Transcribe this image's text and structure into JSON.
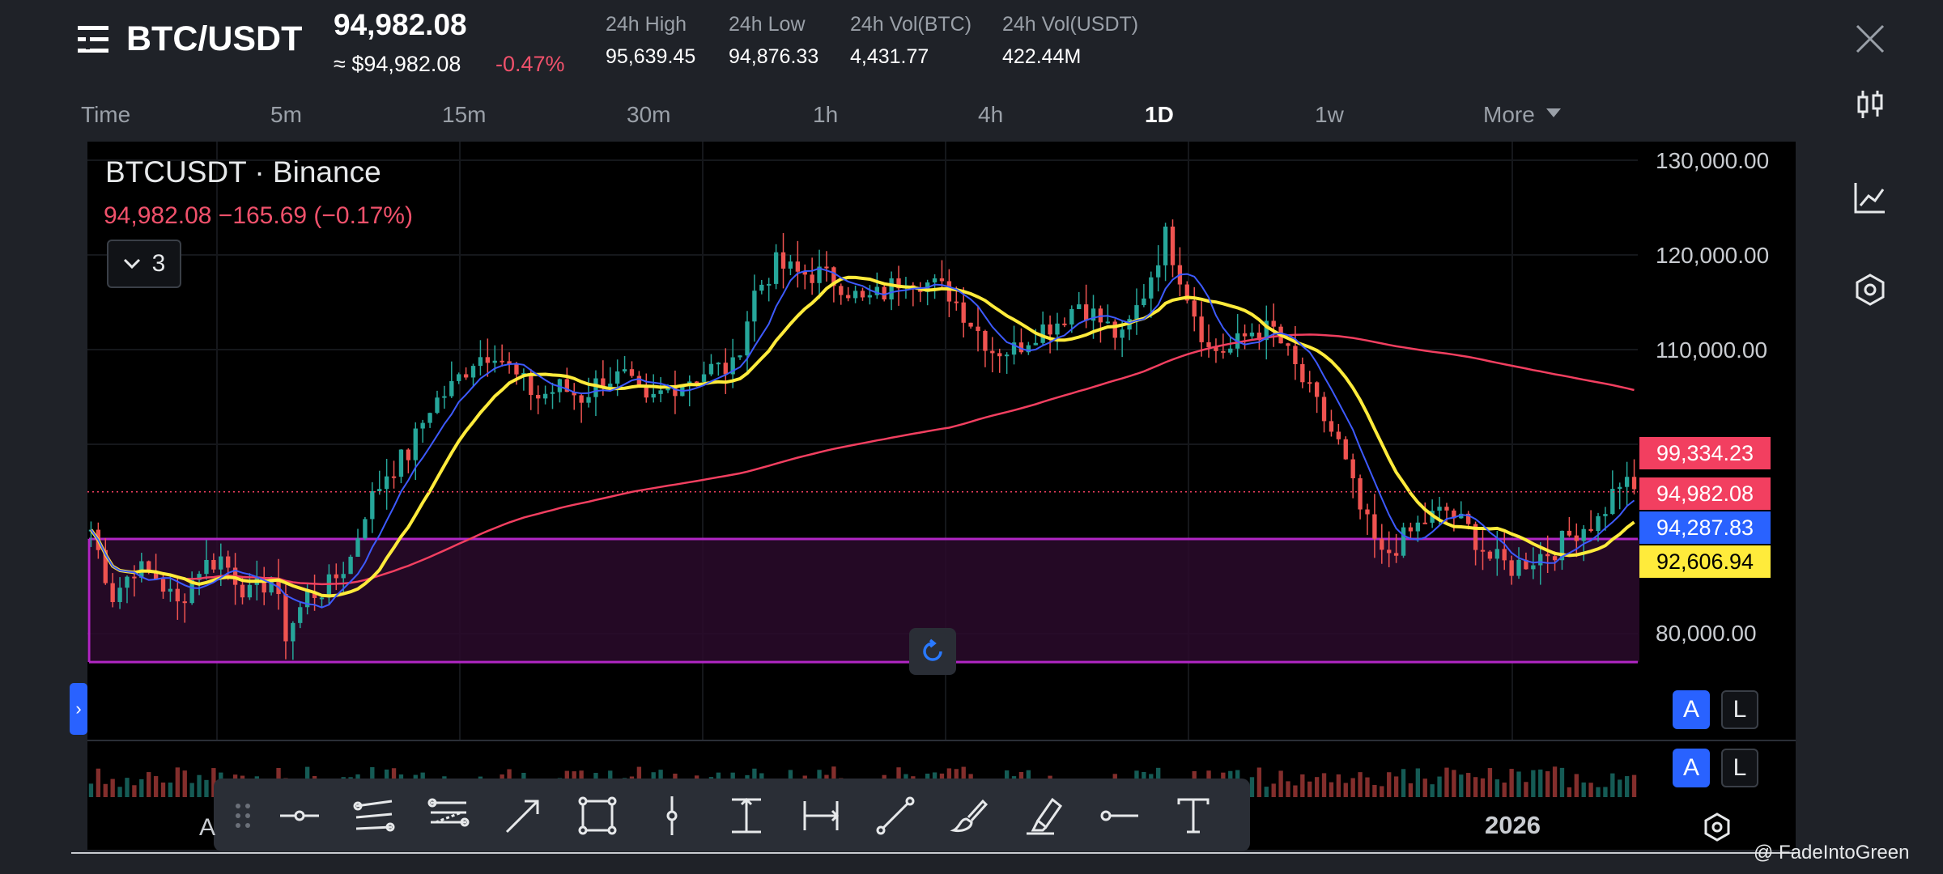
{
  "header": {
    "pair": "BTC/USDT",
    "last_price": "94,982.08",
    "usd_price": "≈ $94,982.08",
    "change_pct": "-0.47%",
    "stats": [
      {
        "label": "24h High",
        "value": "95,639.45"
      },
      {
        "label": "24h Low",
        "value": "94,876.33"
      },
      {
        "label": "24h Vol(BTC)",
        "value": "4,431.77"
      },
      {
        "label": "24h Vol(USDT)",
        "value": "422.44M"
      }
    ],
    "close_icon": "close-icon"
  },
  "timeframes": {
    "items": [
      "Time",
      "5m",
      "15m",
      "30m",
      "1h",
      "4h",
      "1D",
      "1w",
      "More"
    ],
    "active": "1D"
  },
  "right_tools": [
    "candlestick-icon",
    "indicator-chart-icon",
    "settings-hexagon-icon"
  ],
  "chart": {
    "legend_symbol": "BTCUSDT · Binance",
    "legend_quote": "94,982.08  −165.69 (−0.17%)",
    "indicator_count": "3",
    "year_label": "2026",
    "month_label": "A",
    "price_tags": [
      {
        "value": "99,334.23",
        "color": "#f23f60",
        "text_color": "#ffffff"
      },
      {
        "value": "94,982.08",
        "color": "#f23f60",
        "text_color": "#ffffff"
      },
      {
        "value": "94,287.83",
        "color": "#2962ff",
        "text_color": "#ffffff"
      },
      {
        "value": "92,606.94",
        "color": "#ffeb3b",
        "text_color": "#000000"
      }
    ],
    "price_axis": [
      "130,000.00",
      "120,000.00",
      "110,000.00",
      "80,000.00"
    ],
    "scale_buttons": {
      "auto": "A",
      "log": "L"
    }
  },
  "chart_data": {
    "type": "candlestick",
    "title": "BTCUSDT · Binance",
    "timeframe": "1D",
    "ylim": [
      72000,
      132000
    ],
    "y_ticks": [
      130000,
      120000,
      110000,
      80000
    ],
    "grid": true,
    "price_path": [
      [
        0,
        91000
      ],
      [
        3,
        84000
      ],
      [
        6,
        87000
      ],
      [
        9,
        86000
      ],
      [
        12,
        83000
      ],
      [
        15,
        87000
      ],
      [
        18,
        88000
      ],
      [
        22,
        84000
      ],
      [
        25,
        86000
      ],
      [
        27,
        80000
      ],
      [
        30,
        84000
      ],
      [
        33,
        85000
      ],
      [
        36,
        88000
      ],
      [
        38,
        93000
      ],
      [
        41,
        97000
      ],
      [
        44,
        99000
      ],
      [
        47,
        104000
      ],
      [
        50,
        106000
      ],
      [
        53,
        109000
      ],
      [
        56,
        110000
      ],
      [
        59,
        107000
      ],
      [
        62,
        105000
      ],
      [
        65,
        106000
      ],
      [
        68,
        105000
      ],
      [
        71,
        107000
      ],
      [
        74,
        107000
      ],
      [
        77,
        104000
      ],
      [
        80,
        106000
      ],
      [
        83,
        107000
      ],
      [
        86,
        108000
      ],
      [
        89,
        108000
      ],
      [
        92,
        116000
      ],
      [
        95,
        119000
      ],
      [
        98,
        118000
      ],
      [
        101,
        118000
      ],
      [
        104,
        117000
      ],
      [
        107,
        115000
      ],
      [
        110,
        116000
      ],
      [
        113,
        118000
      ],
      [
        116,
        117000
      ],
      [
        119,
        116000
      ],
      [
        122,
        113000
      ],
      [
        125,
        110000
      ],
      [
        128,
        110000
      ],
      [
        131,
        112000
      ],
      [
        134,
        113000
      ],
      [
        137,
        115000
      ],
      [
        140,
        113000
      ],
      [
        143,
        111000
      ],
      [
        146,
        116000
      ],
      [
        149,
        122000
      ],
      [
        152,
        116000
      ],
      [
        155,
        110000
      ],
      [
        158,
        110000
      ],
      [
        161,
        112000
      ],
      [
        164,
        112000
      ],
      [
        167,
        108000
      ],
      [
        170,
        104000
      ],
      [
        173,
        100000
      ],
      [
        176,
        93000
      ],
      [
        179,
        88000
      ],
      [
        182,
        90000
      ],
      [
        185,
        92000
      ],
      [
        188,
        93000
      ],
      [
        191,
        91000
      ],
      [
        194,
        88000
      ],
      [
        197,
        87000
      ],
      [
        200,
        88000
      ],
      [
        203,
        89000
      ],
      [
        206,
        91000
      ],
      [
        209,
        92000
      ],
      [
        212,
        96000
      ],
      [
        214,
        95000
      ]
    ],
    "series": [
      {
        "name": "",
        "kind": "candles"
      },
      {
        "name": "",
        "kind": "ma",
        "period": 7,
        "color": "#3d5afe"
      },
      {
        "name": "",
        "kind": "ma",
        "period": 14,
        "color": "#ffeb3b"
      },
      {
        "name": "",
        "kind": "ma",
        "period": 120,
        "color": "#f23f60"
      }
    ],
    "box": {
      "top": 90000,
      "bottom": 77000
    },
    "current_price": 94982.08
  },
  "draw_tools": [
    "drag-handle-icon",
    "horizontal-line-icon",
    "parallel-channel-icon",
    "fib-retracement-icon",
    "arrow-icon",
    "rectangle-icon",
    "vertical-line-icon",
    "price-range-icon",
    "date-range-icon",
    "trend-line-icon",
    "brush-icon",
    "highlighter-icon",
    "ray-icon",
    "text-icon"
  ],
  "watermark": "@ FadeIntoGreen"
}
